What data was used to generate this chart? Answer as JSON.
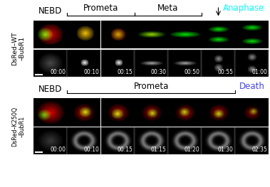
{
  "top_row": {
    "label": "DsRed–WT\n–BubR1",
    "times": [
      "00:00",
      "00:10",
      "00:15",
      "00:30",
      "00:50",
      "00:55",
      "01:00"
    ],
    "n_cols": 7
  },
  "bottom_row": {
    "label": "DsRed–K250Q\n–BubR1",
    "times": [
      "00:00",
      "00:10",
      "00:15",
      "01:15",
      "01:20",
      "01:30",
      "02:35"
    ],
    "n_cols": 7
  },
  "timestamp_fontsize": 5.5,
  "phase_fontsize": 8.5,
  "label_fontsize": 6.5,
  "cyan_color": "#00FFFF",
  "blue_color": "#4444FF"
}
